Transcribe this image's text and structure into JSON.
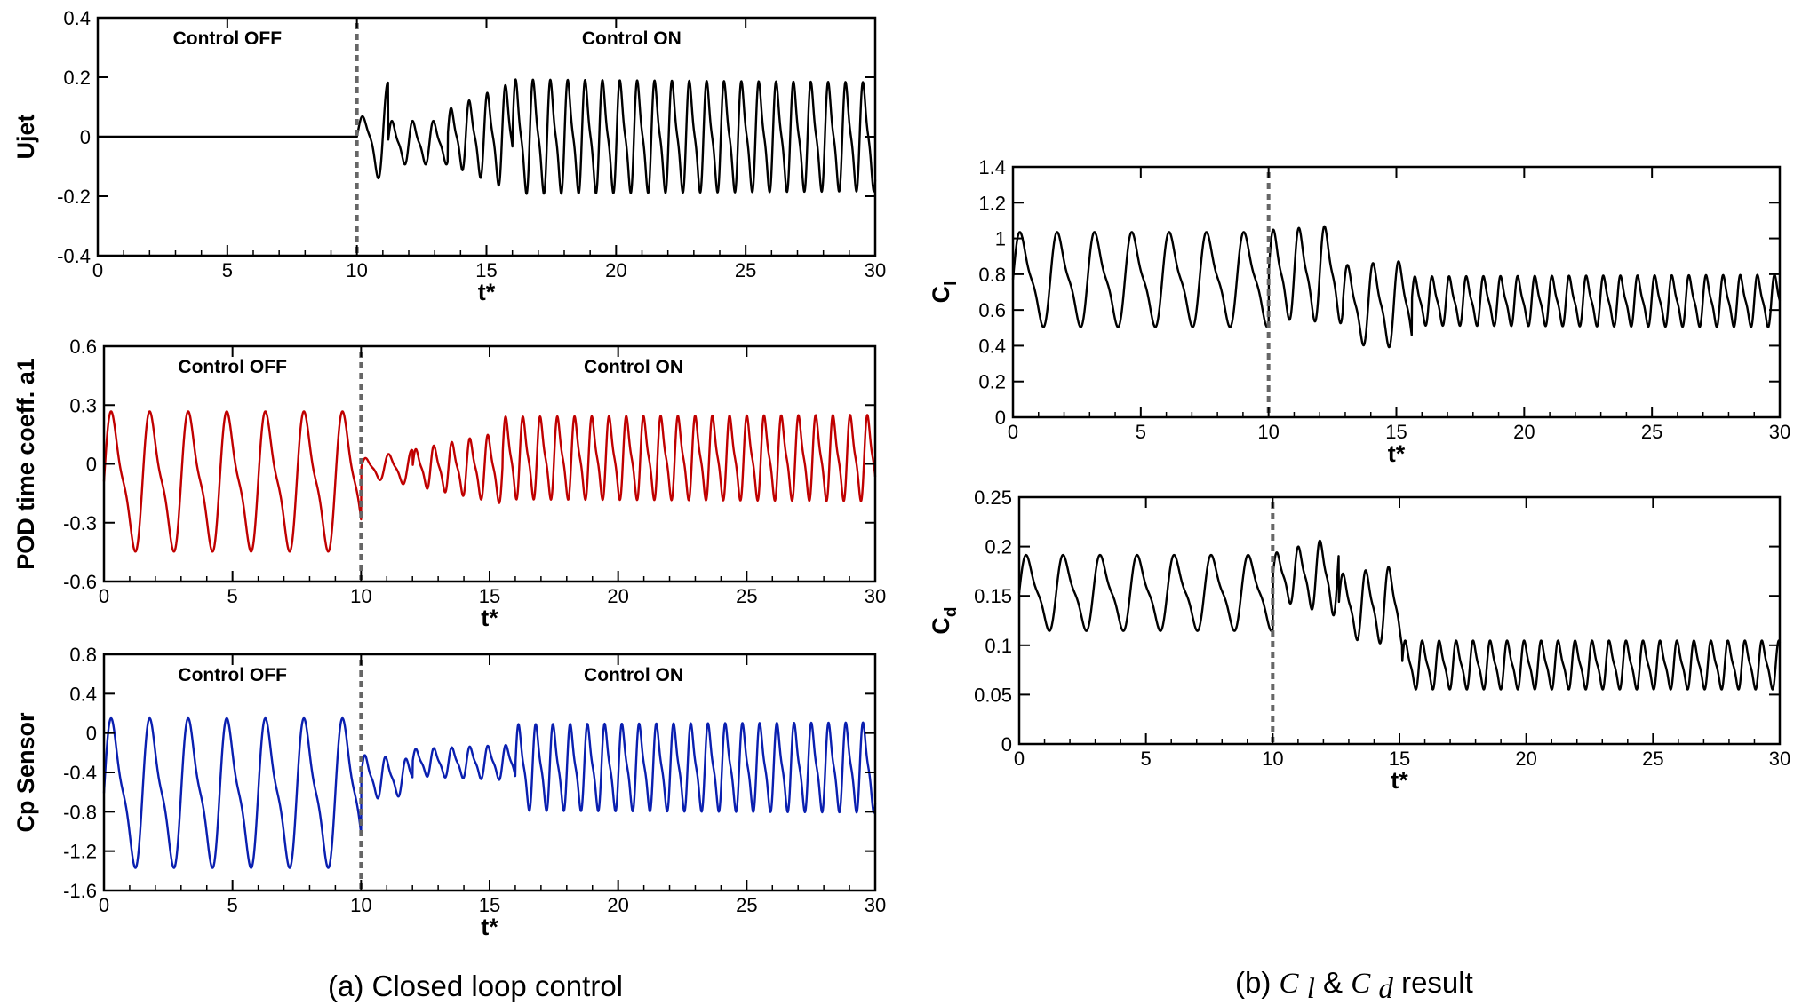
{
  "figure": {
    "caption_a": "(a) Closed loop control",
    "caption_b_prefix": "(b) ",
    "caption_b_cl_main": "C",
    "caption_b_cl_sub": "l",
    "caption_b_amp": " & ",
    "caption_b_cd_main": "C",
    "caption_b_cd_sub": "d",
    "caption_b_suffix": " result"
  },
  "chart_data": [
    {
      "id": "ujet",
      "type": "line",
      "title": "",
      "xlabel": "t*",
      "ylabel": "Ujet",
      "xlim": [
        0,
        30
      ],
      "ylim": [
        -0.4,
        0.4
      ],
      "xticks": [
        "0",
        "5",
        "10",
        "15",
        "20",
        "25",
        "30"
      ],
      "yticks": [
        "0.4",
        "0.2",
        "0",
        "-0.2",
        "-0.4"
      ],
      "vline_x": 10,
      "annotations": [
        {
          "text": "Control OFF",
          "x": 5
        },
        {
          "text": "Control ON",
          "x": 20.6
        }
      ],
      "series": [
        {
          "name": "Ujet",
          "color": "#000000",
          "segments": [
            {
              "x0": 0,
              "x1": 10,
              "period": 1,
              "a0": 0,
              "a1": 0,
              "offset": 0
            },
            {
              "x0": 10,
              "x1": 11.2,
              "period": 1.0,
              "a0": 0.05,
              "a1": 0.2,
              "offset": 0
            },
            {
              "x0": 11.2,
              "x1": 13.5,
              "period": 0.8,
              "a0": 0.08,
              "a1": 0.08,
              "offset": -0.02
            },
            {
              "x0": 13.5,
              "x1": 16,
              "period": 0.7,
              "a0": 0.1,
              "a1": 0.2,
              "offset": 0
            },
            {
              "x0": 16,
              "x1": 30,
              "period": 0.67,
              "a0": 0.21,
              "a1": 0.2,
              "offset": 0
            }
          ]
        }
      ]
    },
    {
      "id": "pod_a1",
      "type": "line",
      "title": "",
      "xlabel": "t*",
      "ylabel": "POD time coeff.  a1",
      "xlim": [
        0,
        30
      ],
      "ylim": [
        -0.6,
        0.6
      ],
      "xticks": [
        "0",
        "5",
        "10",
        "15",
        "20",
        "25",
        "30"
      ],
      "yticks": [
        "0.6",
        "0.3",
        "0",
        "-0.3",
        "-0.6"
      ],
      "vline_x": 10,
      "annotations": [
        {
          "text": "Control OFF",
          "x": 5
        },
        {
          "text": "Control ON",
          "x": 20.6
        }
      ],
      "series": [
        {
          "name": "POD time coeff. a1",
          "color": "#c00000",
          "segments": [
            {
              "x0": 0,
              "x1": 10,
              "period": 1.5,
              "a0": 0.39,
              "a1": 0.39,
              "offset": -0.09
            },
            {
              "x0": 10,
              "x1": 12,
              "period": 0.9,
              "a0": 0.05,
              "a1": 0.1,
              "offset": -0.02
            },
            {
              "x0": 12,
              "x1": 15.5,
              "period": 0.7,
              "a0": 0.1,
              "a1": 0.2,
              "offset": -0.02
            },
            {
              "x0": 15.5,
              "x1": 30,
              "period": 0.67,
              "a0": 0.23,
              "a1": 0.24,
              "offset": 0.03
            }
          ]
        }
      ]
    },
    {
      "id": "cp_sensor",
      "type": "line",
      "title": "",
      "xlabel": "t*",
      "ylabel": "Cp Sensor",
      "xlim": [
        0,
        30
      ],
      "ylim": [
        -1.6,
        0.8
      ],
      "xticks": [
        "0",
        "5",
        "10",
        "15",
        "20",
        "25",
        "30"
      ],
      "yticks": [
        "0.8",
        "0.4",
        "0",
        "-0.4",
        "-0.8",
        "-1.2",
        "-1.6"
      ],
      "vline_x": 10,
      "annotations": [
        {
          "text": "Control OFF",
          "x": 5
        },
        {
          "text": "Control ON",
          "x": 20.6
        }
      ],
      "series": [
        {
          "name": "Cp Sensor",
          "color": "#0a1fb0",
          "segments": [
            {
              "x0": 0,
              "x1": 10,
              "period": 1.5,
              "a0": 0.83,
              "a1": 0.83,
              "offset": -0.61
            },
            {
              "x0": 10,
              "x1": 12,
              "period": 0.8,
              "a0": 0.25,
              "a1": 0.2,
              "offset": -0.45
            },
            {
              "x0": 12,
              "x1": 16,
              "period": 0.7,
              "a0": 0.15,
              "a1": 0.2,
              "offset": -0.3
            },
            {
              "x0": 16,
              "x1": 30,
              "period": 0.67,
              "a0": 0.48,
              "a1": 0.5,
              "offset": -0.35
            }
          ]
        }
      ]
    },
    {
      "id": "cl",
      "type": "line",
      "title": "",
      "xlabel": "t*",
      "ylabel": "C",
      "ylabel_sub": "l",
      "xlim": [
        0,
        30
      ],
      "ylim": [
        0,
        1.4
      ],
      "xticks": [
        "0",
        "5",
        "10",
        "15",
        "20",
        "25",
        "30"
      ],
      "yticks": [
        "1.4",
        "1.2",
        "1",
        "0.8",
        "0.6",
        "0.4",
        "0.2",
        "0"
      ],
      "vline_x": 10,
      "annotations": [],
      "series": [
        {
          "name": "Cl",
          "color": "#000000",
          "segments": [
            {
              "x0": 0,
              "x1": 10,
              "period": 1.46,
              "a0": 0.29,
              "a1": 0.29,
              "offset": 0.77
            },
            {
              "x0": 10,
              "x1": 12.9,
              "period": 1.0,
              "a0": 0.27,
              "a1": 0.3,
              "offset": 0.8
            },
            {
              "x0": 12.9,
              "x1": 15.6,
              "period": 1.0,
              "a0": 0.24,
              "a1": 0.27,
              "offset": 0.63
            },
            {
              "x0": 15.6,
              "x1": 30,
              "period": 0.67,
              "a0": 0.15,
              "a1": 0.16,
              "offset": 0.65
            }
          ]
        }
      ]
    },
    {
      "id": "cd",
      "type": "line",
      "title": "",
      "xlabel": "t*",
      "ylabel": "C",
      "ylabel_sub": "d",
      "xlim": [
        0,
        30
      ],
      "ylim": [
        0,
        0.25
      ],
      "xticks": [
        "0",
        "5",
        "10",
        "15",
        "20",
        "25",
        "30"
      ],
      "yticks": [
        "0.25",
        "0.2",
        "0.15",
        "0.1",
        "0.05",
        "0"
      ],
      "vline_x": 10,
      "annotations": [],
      "series": [
        {
          "name": "Cd",
          "color": "#000000",
          "segments": [
            {
              "x0": 0,
              "x1": 10,
              "period": 1.46,
              "a0": 0.042,
              "a1": 0.042,
              "offset": 0.153
            },
            {
              "x0": 10,
              "x1": 12.6,
              "period": 0.85,
              "a0": 0.025,
              "a1": 0.045,
              "offset": 0.17
            },
            {
              "x0": 12.6,
              "x1": 15.1,
              "period": 0.9,
              "a0": 0.035,
              "a1": 0.045,
              "offset": 0.14
            },
            {
              "x0": 15.1,
              "x1": 30,
              "period": 0.67,
              "a0": 0.027,
              "a1": 0.027,
              "offset": 0.08
            }
          ]
        }
      ]
    }
  ]
}
